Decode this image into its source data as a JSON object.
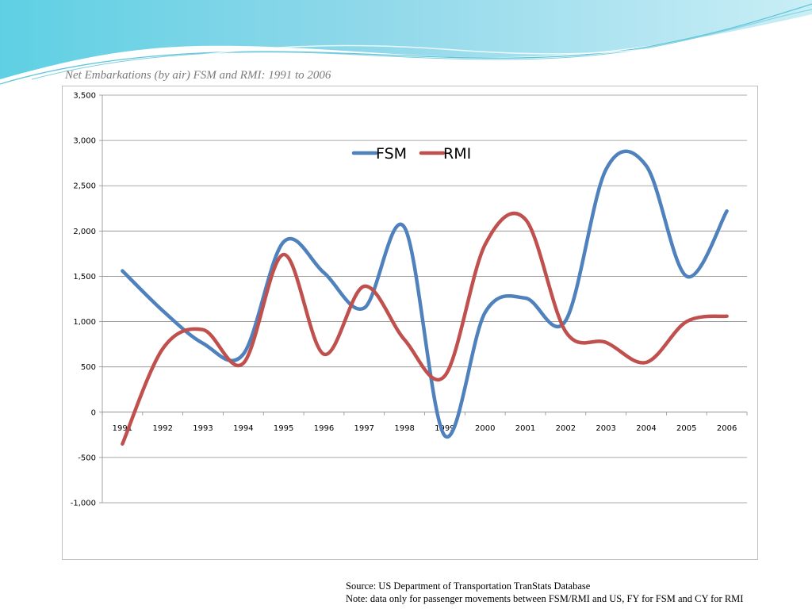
{
  "slide": {
    "title": "Net Embarkations (by air) FSM and RMI: 1991 to 2006",
    "source": "Source: US Department of Transportation TranStats Database",
    "note": "Note: data only for passenger movements between FSM/RMI and US, FY for FSM and CY for RMI"
  },
  "chart_data": {
    "type": "line",
    "title": "",
    "xlabel": "",
    "ylabel": "",
    "categories": [
      "1991",
      "1992",
      "1993",
      "1994",
      "1995",
      "1996",
      "1997",
      "1998",
      "1999",
      "2000",
      "2001",
      "2002",
      "2003",
      "2004",
      "2005",
      "2006"
    ],
    "ylim": [
      -1000,
      3500
    ],
    "yticks": [
      -1000,
      -500,
      0,
      500,
      1000,
      1500,
      2000,
      2500,
      3000,
      3500
    ],
    "ytick_labels": [
      "-1,000",
      "-500",
      "0",
      "500",
      "1,000",
      "1,500",
      "2,000",
      "2,500",
      "3,000",
      "3,500"
    ],
    "grid": true,
    "smooth": true,
    "legend": "top-center",
    "series": [
      {
        "name": "FSM",
        "color": "#4f81bd",
        "values": [
          1560,
          1120,
          760,
          640,
          1880,
          1540,
          1150,
          2040,
          -260,
          1100,
          1260,
          1010,
          2680,
          2720,
          1500,
          2220
        ]
      },
      {
        "name": "RMI",
        "color": "#c0504d",
        "values": [
          -350,
          700,
          910,
          540,
          1740,
          640,
          1390,
          800,
          400,
          1850,
          2130,
          890,
          770,
          550,
          1000,
          1060
        ]
      }
    ]
  }
}
